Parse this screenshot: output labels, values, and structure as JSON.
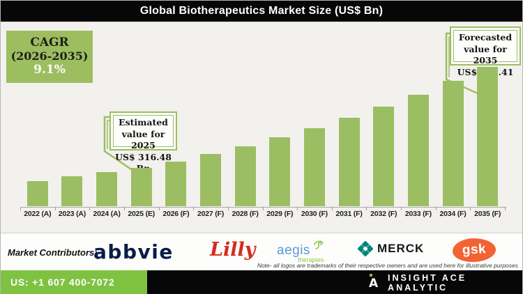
{
  "title_bar": {
    "title": "Global Biotherapeutics Market Size (US$ Bn)"
  },
  "cagr_box": {
    "label": "CAGR",
    "period": "(2026-2035)",
    "value": "9.1%"
  },
  "callouts": {
    "estimated": {
      "line1": "Estimated",
      "line2": "value for 2025",
      "line3": "US$ 316.48 Bn"
    },
    "forecasted": {
      "line1": "Forecasted",
      "line2": "value for 2035",
      "line3": "US$ 752.41 Bn"
    }
  },
  "chart_data": {
    "type": "bar",
    "title": "Global Biotherapeutics Market Size (US$ Bn)",
    "unit": "US$ Bn",
    "categories": [
      "2022 (A)",
      "2023 (A)",
      "2024 (A)",
      "2025 (E)",
      "2026 (F)",
      "2027 (F)",
      "2028 (F)",
      "2029 (F)",
      "2030 (F)",
      "2031 (F)",
      "2032 (F)",
      "2033 (F)",
      "2034 (F)",
      "2035 (F)"
    ],
    "values": [
      259.0,
      279.5,
      297.6,
      316.48,
      343.6,
      374.9,
      409.0,
      446.2,
      486.8,
      531.1,
      579.4,
      632.2,
      689.7,
      752.41
    ],
    "labeled_values": {
      "2025 (E)": 316.48,
      "2035 (F)": 752.41
    },
    "cagr_2026_2035_pct": 9.1,
    "xlabel": "",
    "ylabel": "US$ Bn",
    "ylim": [
      150,
      790
    ],
    "grid": false,
    "legend": "none",
    "bar_color": "#9cbe63"
  },
  "contributors": {
    "label": "Market Contributors:",
    "abbvie_text": "abbvie",
    "lilly_text": "Lilly",
    "aegis_text": "aegis",
    "aegis_sub": "therapies·",
    "merck_text": "MERCK",
    "gsk_text": "gsk",
    "note": "Note- all logos are trademarks of their respective owners and are used here for illustrative purposes"
  },
  "footer": {
    "phone": "US: +1 607 400-7072",
    "brand": "INSIGHT ACE ANALYTIC",
    "logo_letter": "A"
  },
  "colors": {
    "bar_green": "#9cbe63",
    "cagr_green": "#9cbe5f",
    "footer_green": "#7fc242",
    "abbvie_navy": "#071d49",
    "lilly_red": "#d52b1e",
    "aegis_blue": "#5b9bd5",
    "aegis_green": "#8cc63f",
    "merck_teal": "#00857c",
    "gsk_orange": "#f26334"
  }
}
